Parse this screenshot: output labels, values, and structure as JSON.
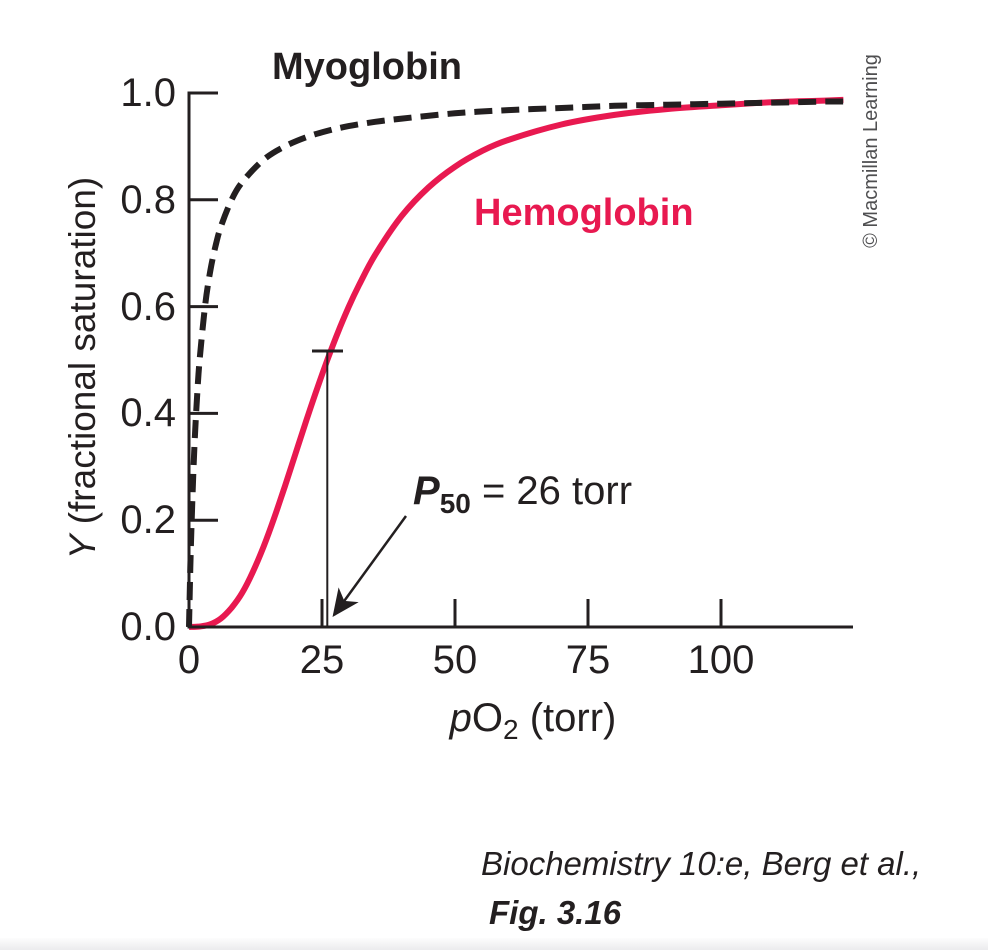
{
  "figure": {
    "myoglobin_label": "Myoglobin",
    "hemoglobin_label": "Hemoglobin",
    "y_axis_title_italic": "Y",
    "y_axis_title_rest": " (fractional saturation)",
    "x_axis_title_italic": "p",
    "x_axis_title_main": "O",
    "x_axis_title_sub": "2",
    "x_axis_title_rest": " (torr)",
    "y_tick_labels": [
      "1.0",
      "0.8",
      "0.6",
      "0.4",
      "0.2",
      "0.0"
    ],
    "x_tick_labels": [
      "0",
      "25",
      "50",
      "75",
      "100"
    ],
    "p50_annotation": {
      "symbol": "P",
      "subscript": "50",
      "rest": " = 26 torr"
    },
    "credit": "© Macmillan Learning"
  },
  "citation": {
    "line1": "Biochemistry 10:e, Berg et al.,",
    "line2": "Fig. 3.16"
  },
  "colors": {
    "hemoglobin_red": "#e81950",
    "ink_black": "#231f20",
    "credit_gray": "#4f4f51"
  },
  "chart_data": {
    "type": "line",
    "title": "Oxygen-binding curves of myoglobin and hemoglobin",
    "xlabel": "pO2 (torr)",
    "ylabel": "Y (fractional saturation)",
    "xlim": [
      0,
      125
    ],
    "ylim": [
      0.0,
      1.0
    ],
    "x_ticks": [
      0,
      25,
      50,
      75,
      100
    ],
    "y_ticks": [
      0.0,
      0.2,
      0.4,
      0.6,
      0.8,
      1.0
    ],
    "grid": false,
    "legend_position": "labels-on-curves",
    "annotations": [
      {
        "text": "P50 = 26 torr",
        "marker_x": 26,
        "marker_y": 0.5,
        "arrow_points_to_x": 26
      }
    ],
    "series": [
      {
        "name": "Hemoglobin",
        "style": "solid",
        "color": "#e81950",
        "model": "sigmoidal (Hill coefficient ~2.8)",
        "p50_torr": 26,
        "x": [
          0,
          2,
          4,
          6,
          8,
          10,
          12,
          14,
          16,
          18,
          20,
          22,
          24,
          26,
          28,
          30,
          32,
          35,
          40,
          45,
          50,
          55,
          60,
          70,
          80,
          90,
          100,
          110,
          120,
          123
        ],
        "y": [
          0,
          0.001,
          0.005,
          0.016,
          0.036,
          0.064,
          0.103,
          0.15,
          0.204,
          0.263,
          0.324,
          0.385,
          0.444,
          0.5,
          0.552,
          0.599,
          0.641,
          0.697,
          0.77,
          0.823,
          0.862,
          0.891,
          0.912,
          0.941,
          0.959,
          0.97,
          0.977,
          0.983,
          0.986,
          0.987
        ]
      },
      {
        "name": "Myoglobin",
        "style": "dashed",
        "color": "#231f20",
        "model": "hyperbolic (Y = pO2/(pO2+P50))",
        "p50_torr": 2,
        "x": [
          0,
          0.25,
          0.5,
          1,
          1.5,
          2,
          3,
          4,
          5,
          6,
          8,
          10,
          14,
          18,
          22,
          26,
          30,
          35,
          40,
          50,
          60,
          70,
          80,
          90,
          100,
          110,
          120,
          123
        ],
        "y": [
          0,
          0.111,
          0.2,
          0.333,
          0.429,
          0.5,
          0.6,
          0.667,
          0.714,
          0.75,
          0.8,
          0.833,
          0.875,
          0.9,
          0.917,
          0.929,
          0.938,
          0.946,
          0.952,
          0.962,
          0.968,
          0.972,
          0.976,
          0.978,
          0.98,
          0.982,
          0.984,
          0.984
        ]
      }
    ]
  }
}
